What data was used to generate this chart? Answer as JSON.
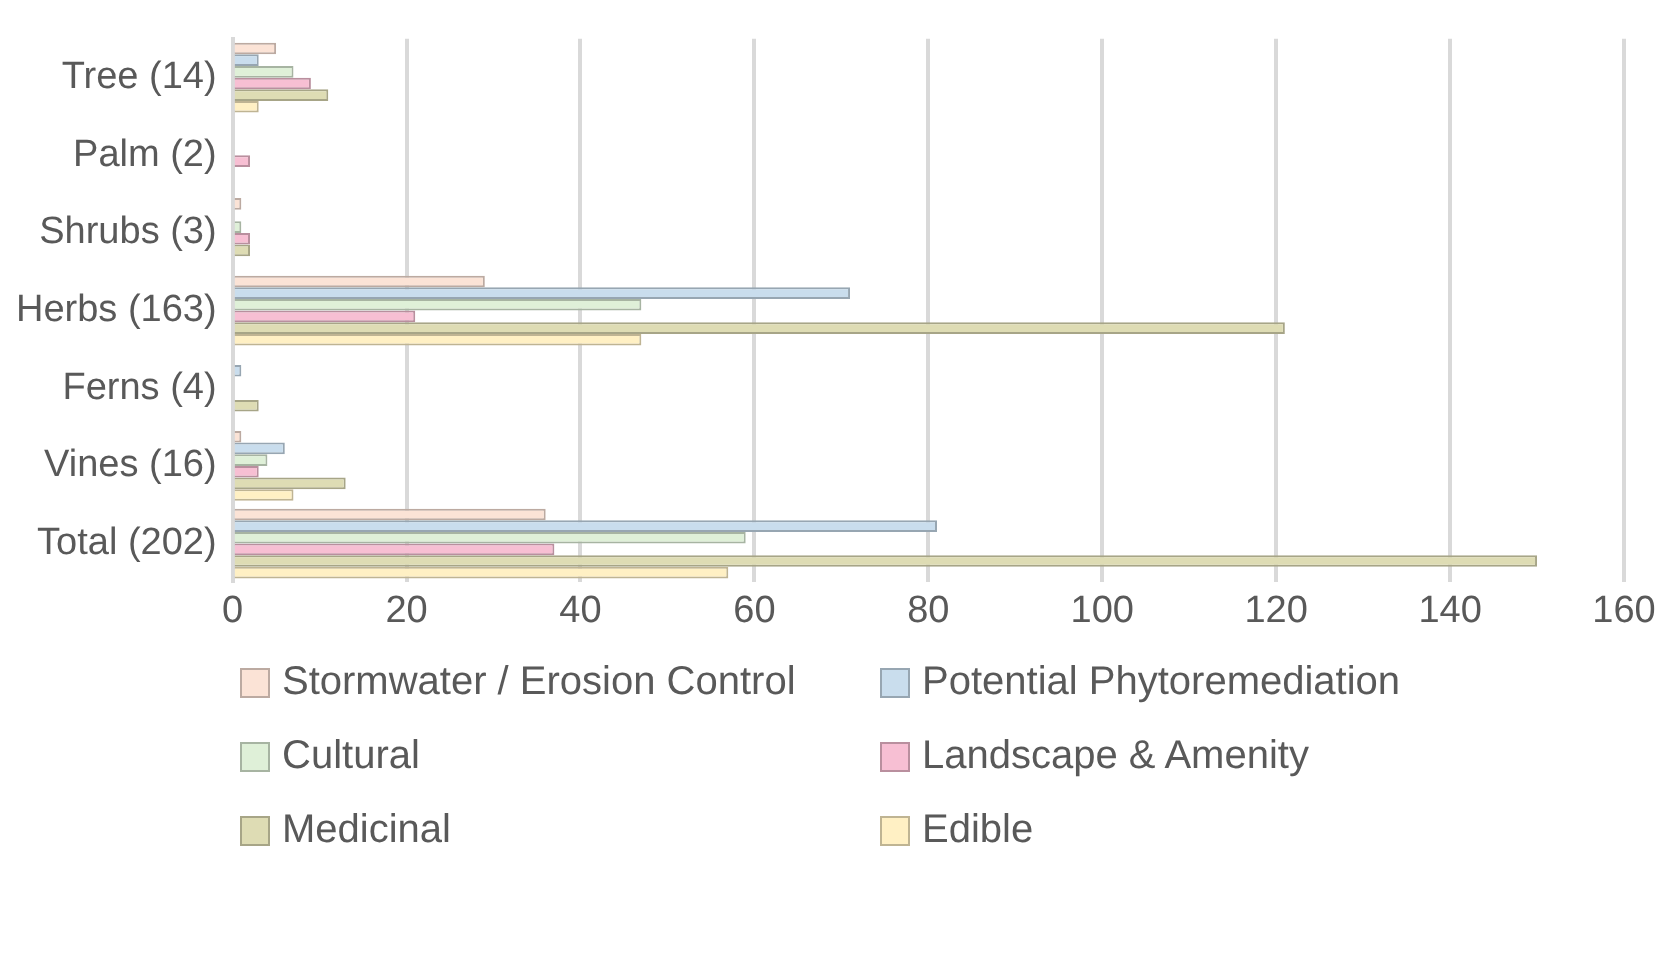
{
  "chart_data": {
    "type": "bar",
    "orientation": "horizontal",
    "categories": [
      "Tree (14)",
      "Palm (2)",
      "Shrubs (3)",
      "Herbs (163)",
      "Ferns (4)",
      "Vines (16)",
      "Total (202)"
    ],
    "series": [
      {
        "name": "Stormwater / Erosion Control",
        "color": "#fbe3d6",
        "values": [
          5,
          0,
          1,
          29,
          0,
          1,
          36
        ]
      },
      {
        "name": "Potential Phytoremediation",
        "color": "#c9dded",
        "values": [
          3,
          0,
          0,
          71,
          1,
          6,
          81
        ]
      },
      {
        "name": "Cultural",
        "color": "#dff0d8",
        "values": [
          7,
          0,
          1,
          47,
          0,
          4,
          59
        ]
      },
      {
        "name": "Landscape & Amenity",
        "color": "#f7bfd3",
        "values": [
          9,
          2,
          2,
          21,
          0,
          3,
          37
        ]
      },
      {
        "name": "Medicinal",
        "color": "#dedcb4",
        "values": [
          11,
          0,
          2,
          121,
          3,
          13,
          150
        ]
      },
      {
        "name": "Edible",
        "color": "#fff0c4",
        "values": [
          3,
          0,
          0,
          47,
          0,
          7,
          57
        ]
      }
    ],
    "xlim": [
      0,
      160
    ],
    "xticks": [
      0,
      20,
      40,
      60,
      80,
      100,
      120,
      140,
      160
    ],
    "grid": "x",
    "legend": "bottom"
  }
}
